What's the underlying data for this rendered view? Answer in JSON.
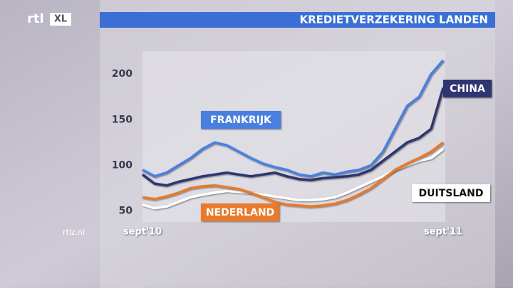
{
  "branding": {
    "logo": "rtl",
    "logo_badge": "XL",
    "site": "rtlz.nl"
  },
  "chart_data": {
    "type": "line",
    "title": "KREDIETVERZEKERING LANDEN",
    "categories": [
      "sept'10",
      null,
      null,
      null,
      null,
      null,
      null,
      null,
      null,
      null,
      null,
      null,
      null,
      null,
      null,
      null,
      null,
      null,
      null,
      null,
      null,
      null,
      null,
      null,
      null,
      "sept'11"
    ],
    "series": [
      {
        "name": "FRANKRIJK",
        "color": "#4a7fe0",
        "values": [
          95,
          88,
          92,
          100,
          108,
          118,
          125,
          122,
          115,
          108,
          102,
          98,
          95,
          90,
          88,
          92,
          90,
          93,
          95,
          100,
          115,
          140,
          165,
          175,
          200,
          215
        ]
      },
      {
        "name": "CHINA",
        "color": "#2e3470",
        "values": [
          90,
          80,
          78,
          82,
          85,
          88,
          90,
          92,
          90,
          88,
          90,
          92,
          88,
          85,
          84,
          86,
          87,
          88,
          90,
          95,
          105,
          115,
          125,
          130,
          140,
          185
        ]
      },
      {
        "name": "DUITSLAND",
        "color": "#ffffff",
        "values": [
          57,
          53,
          55,
          60,
          65,
          68,
          70,
          72,
          71,
          70,
          68,
          66,
          64,
          62,
          62,
          63,
          65,
          70,
          76,
          82,
          88,
          95,
          100,
          105,
          108,
          118
        ]
      },
      {
        "name": "NEDERLAND",
        "color": "#e87a2c",
        "values": [
          65,
          63,
          66,
          70,
          75,
          77,
          78,
          76,
          74,
          70,
          65,
          60,
          57,
          56,
          55,
          56,
          58,
          62,
          68,
          75,
          85,
          95,
          102,
          108,
          115,
          125
        ]
      }
    ],
    "ylim": [
      38,
      225
    ],
    "yticks": [
      50,
      100,
      150,
      200
    ],
    "grid": false
  }
}
